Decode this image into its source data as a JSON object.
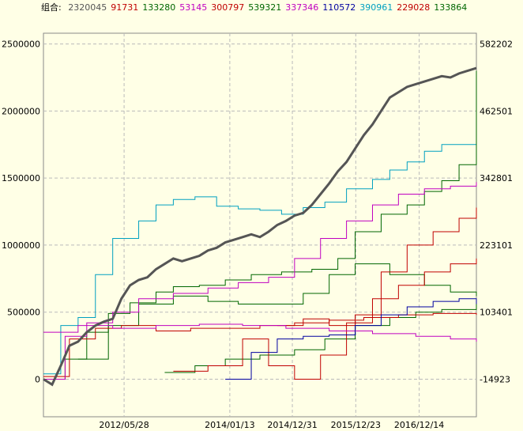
{
  "legend": {
    "label": "组合:",
    "entries": [
      {
        "value": "2320045",
        "color": "#555555"
      },
      {
        "value": "91731",
        "color": "#C00000"
      },
      {
        "value": "133280",
        "color": "#006600"
      },
      {
        "value": "53145",
        "color": "#C000C0"
      },
      {
        "value": "300797",
        "color": "#C00000"
      },
      {
        "value": "539321",
        "color": "#006600"
      },
      {
        "value": "337346",
        "color": "#C000C0"
      },
      {
        "value": "110572",
        "color": "#0000A0"
      },
      {
        "value": "390961",
        "color": "#00A0C0"
      },
      {
        "value": "229028",
        "color": "#C00000"
      },
      {
        "value": "133864",
        "color": "#006600"
      }
    ]
  },
  "chart_data": {
    "type": "line",
    "x_tick_labels": [
      "2012/05/28",
      "2014/01/13",
      "2014/12/31",
      "2015/12/23",
      "2016/12/14"
    ],
    "x_range": [
      "2011/03/01",
      "2017/11/01"
    ],
    "y_left": {
      "ticks": [
        0,
        500000,
        1000000,
        1500000,
        2000000,
        2500000
      ],
      "labels": [
        "0",
        "500000",
        "1000000",
        "1500000",
        "2000000",
        "2500000"
      ],
      "range": [
        -280000,
        2580000
      ]
    },
    "y_right": {
      "ticks": [
        -14923,
        103401,
        223101,
        342801,
        462501,
        582202
      ],
      "labels": [
        "-14923",
        "103401",
        "223101",
        "342801",
        "462501",
        "582202"
      ]
    },
    "grid": true,
    "series": [
      {
        "color": "#00A0C0",
        "step": true,
        "x": [
          0.0,
          0.04,
          0.08,
          0.12,
          0.16,
          0.22,
          0.26,
          0.3,
          0.35,
          0.4,
          0.45,
          0.5,
          0.55,
          0.6,
          0.65,
          0.7,
          0.76,
          0.8,
          0.84,
          0.88,
          0.92,
          1.0
        ],
        "y": [
          40000,
          400000,
          460000,
          780000,
          1050000,
          1180000,
          1300000,
          1340000,
          1360000,
          1290000,
          1270000,
          1260000,
          1230000,
          1280000,
          1320000,
          1420000,
          1490000,
          1560000,
          1620000,
          1700000,
          1750000,
          1680000
        ]
      },
      {
        "color": "#006600",
        "step": true,
        "x": [
          0.0,
          0.05,
          0.1,
          0.15,
          0.2,
          0.26,
          0.3,
          0.36,
          0.42,
          0.48,
          0.55,
          0.62,
          0.68,
          0.72,
          0.78,
          0.84,
          0.88,
          0.92,
          0.96,
          1.0
        ],
        "y": [
          0,
          150000,
          350000,
          490000,
          570000,
          650000,
          690000,
          700000,
          740000,
          780000,
          800000,
          820000,
          900000,
          1100000,
          1230000,
          1300000,
          1400000,
          1480000,
          1600000,
          2300000
        ]
      },
      {
        "color": "#006600",
        "step": true,
        "x": [
          0.28,
          0.35,
          0.42,
          0.5,
          0.58,
          0.65,
          0.72,
          0.8,
          0.86,
          0.92,
          1.0
        ],
        "y": [
          50000,
          100000,
          150000,
          180000,
          220000,
          300000,
          400000,
          460000,
          500000,
          520000,
          560000
        ]
      },
      {
        "color": "#006600",
        "step": true,
        "x": [
          0.08,
          0.15,
          0.22,
          0.3,
          0.38,
          0.45,
          0.52,
          0.6,
          0.66,
          0.72,
          0.8,
          0.88,
          0.94,
          1.0
        ],
        "y": [
          150000,
          400000,
          560000,
          620000,
          580000,
          560000,
          560000,
          640000,
          780000,
          860000,
          780000,
          700000,
          650000,
          620000
        ]
      },
      {
        "color": "#C00000",
        "step": true,
        "x": [
          0.0,
          0.06,
          0.12,
          0.18,
          0.26,
          0.34,
          0.42,
          0.5,
          0.58,
          0.66,
          0.74,
          0.82,
          0.9,
          1.0
        ],
        "y": [
          20000,
          300000,
          380000,
          400000,
          360000,
          380000,
          380000,
          400000,
          420000,
          440000,
          460000,
          480000,
          490000,
          480000
        ]
      },
      {
        "color": "#C00000",
        "step": true,
        "x": [
          0.3,
          0.38,
          0.46,
          0.52,
          0.58,
          0.64,
          0.7,
          0.76,
          0.82,
          0.88,
          0.94,
          1.0
        ],
        "y": [
          60000,
          100000,
          300000,
          100000,
          0,
          180000,
          420000,
          600000,
          700000,
          800000,
          860000,
          900000
        ]
      },
      {
        "color": "#C00000",
        "step": true,
        "x": [
          0.54,
          0.6,
          0.66,
          0.72,
          0.78,
          0.84,
          0.9,
          0.96,
          1.0
        ],
        "y": [
          400000,
          450000,
          400000,
          480000,
          800000,
          1000000,
          1100000,
          1200000,
          1280000
        ]
      },
      {
        "color": "#C000C0",
        "step": true,
        "x": [
          0.0,
          0.05,
          0.1,
          0.16,
          0.22,
          0.3,
          0.38,
          0.45,
          0.52,
          0.58,
          0.64,
          0.7,
          0.76,
          0.82,
          0.88,
          0.94,
          1.0
        ],
        "y": [
          0,
          320000,
          420000,
          500000,
          600000,
          640000,
          680000,
          720000,
          760000,
          900000,
          1050000,
          1180000,
          1300000,
          1380000,
          1420000,
          1440000,
          1470000
        ]
      },
      {
        "color": "#C000C0",
        "step": true,
        "x": [
          0.0,
          0.08,
          0.16,
          0.26,
          0.36,
          0.46,
          0.56,
          0.66,
          0.76,
          0.86,
          0.94,
          1.0
        ],
        "y": [
          350000,
          400000,
          380000,
          400000,
          410000,
          400000,
          380000,
          360000,
          340000,
          320000,
          300000,
          280000
        ]
      },
      {
        "color": "#0000A0",
        "step": true,
        "x": [
          0.42,
          0.48,
          0.54,
          0.6,
          0.66,
          0.72,
          0.78,
          0.84,
          0.9,
          0.96,
          1.0
        ],
        "y": [
          0,
          200000,
          300000,
          320000,
          330000,
          400000,
          480000,
          540000,
          580000,
          600000,
          560000
        ]
      },
      {
        "color": "#555555",
        "step": false,
        "bold": true,
        "x": [
          0.0,
          0.02,
          0.04,
          0.06,
          0.08,
          0.1,
          0.12,
          0.14,
          0.16,
          0.18,
          0.2,
          0.22,
          0.24,
          0.26,
          0.28,
          0.3,
          0.32,
          0.34,
          0.36,
          0.38,
          0.4,
          0.42,
          0.44,
          0.46,
          0.48,
          0.5,
          0.52,
          0.54,
          0.56,
          0.58,
          0.6,
          0.62,
          0.64,
          0.66,
          0.68,
          0.7,
          0.72,
          0.74,
          0.76,
          0.78,
          0.8,
          0.82,
          0.84,
          0.86,
          0.88,
          0.9,
          0.92,
          0.94,
          0.96,
          0.98,
          1.0
        ],
        "y": [
          0,
          -40000,
          100000,
          250000,
          280000,
          350000,
          400000,
          430000,
          450000,
          600000,
          700000,
          740000,
          760000,
          820000,
          860000,
          900000,
          880000,
          900000,
          920000,
          960000,
          980000,
          1020000,
          1040000,
          1060000,
          1080000,
          1060000,
          1100000,
          1150000,
          1180000,
          1220000,
          1240000,
          1300000,
          1380000,
          1460000,
          1550000,
          1620000,
          1720000,
          1820000,
          1900000,
          2000000,
          2100000,
          2140000,
          2180000,
          2200000,
          2220000,
          2240000,
          2260000,
          2250000,
          2280000,
          2300000,
          2320000
        ]
      }
    ]
  }
}
